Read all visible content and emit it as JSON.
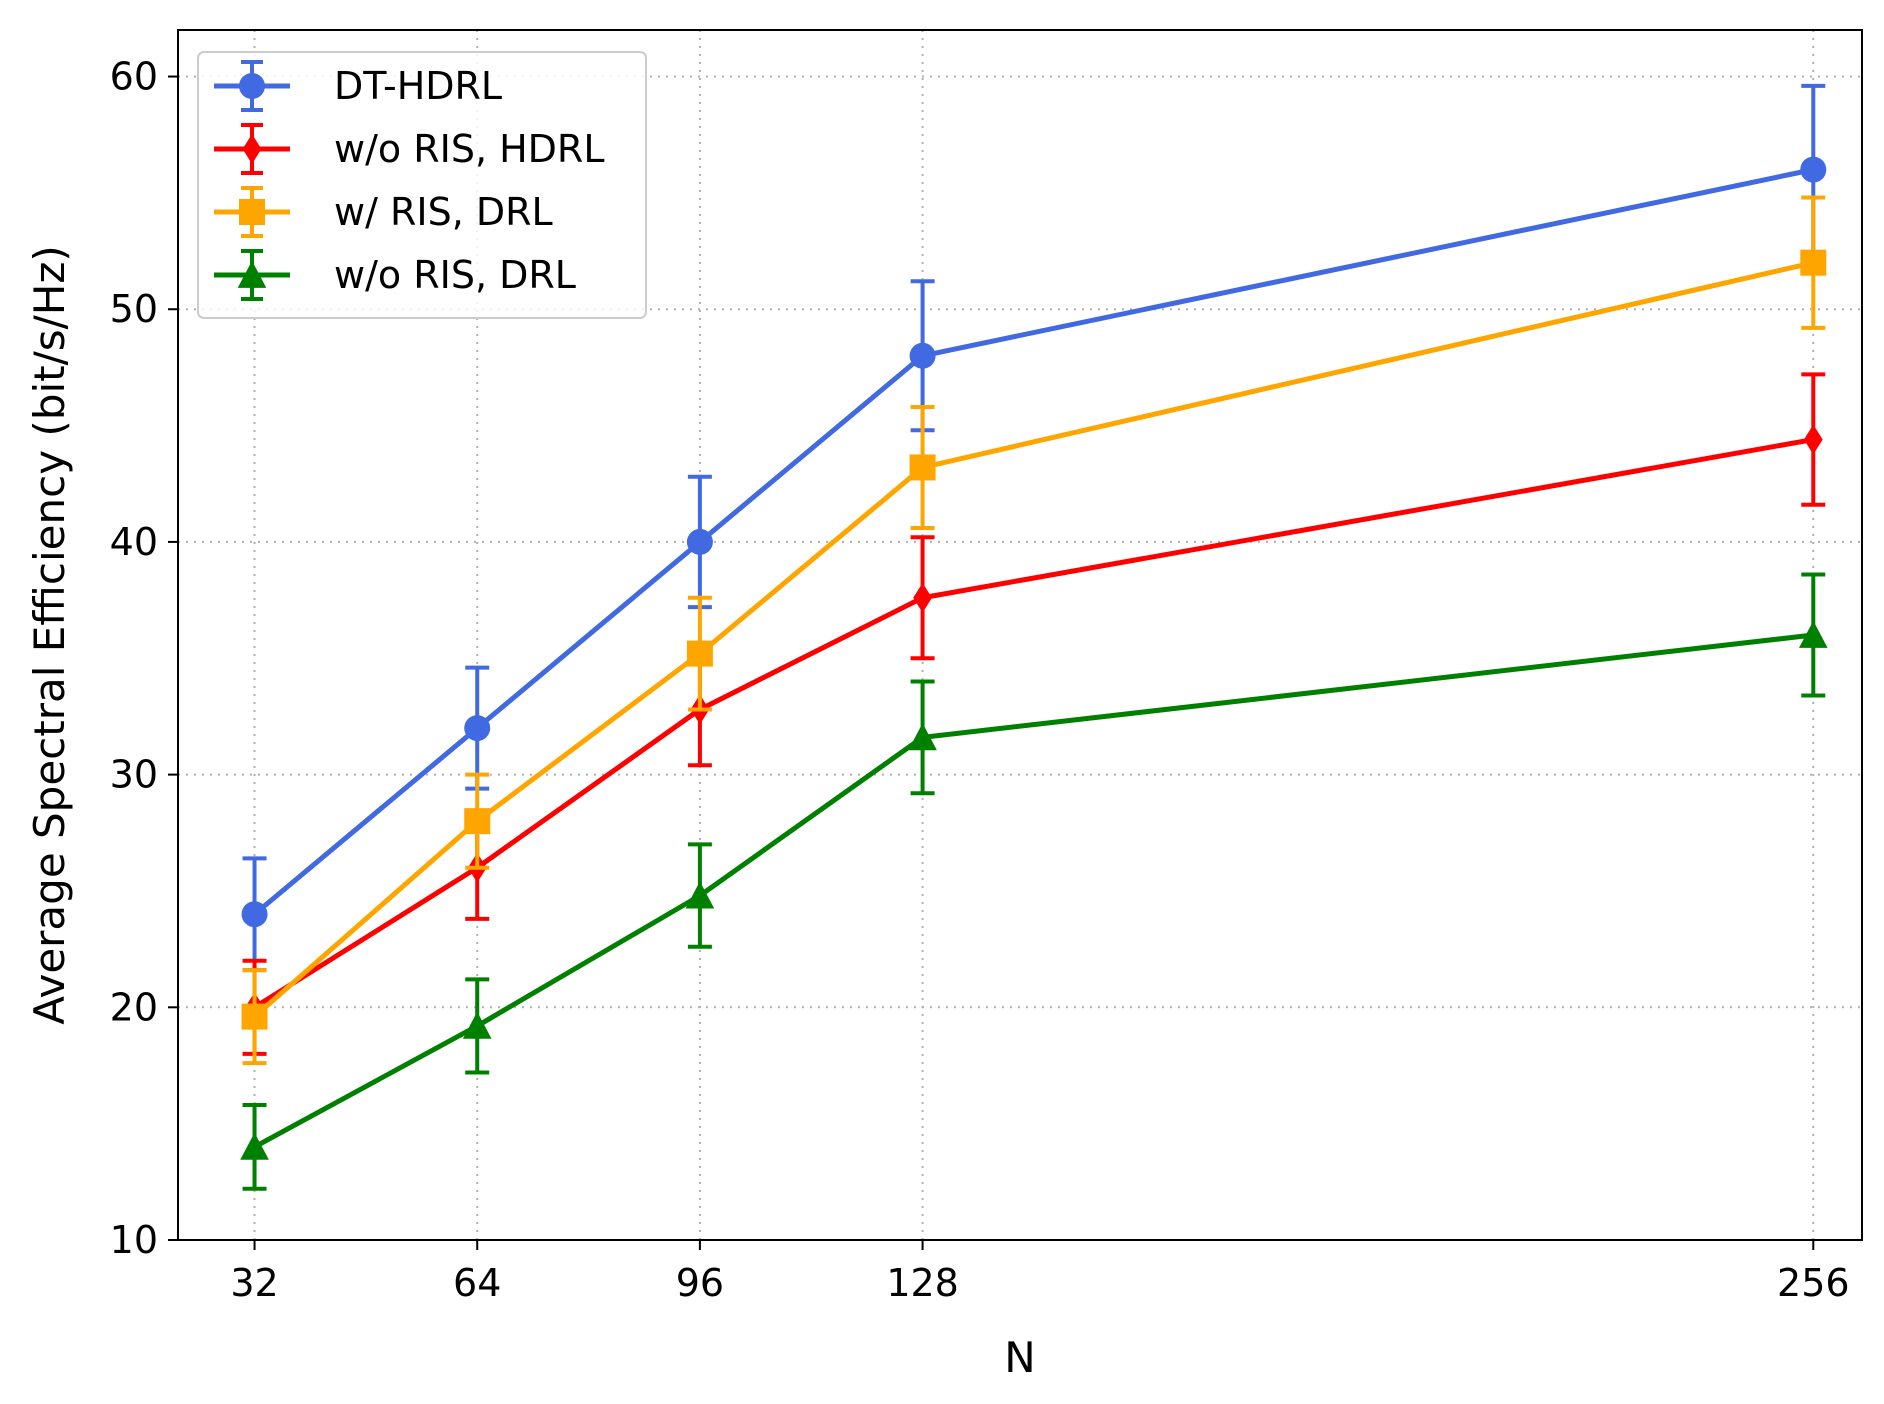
{
  "chart_data": {
    "type": "line",
    "title": "",
    "xlabel": "N",
    "ylabel": "Average Spectral Efficiency (bit/s/Hz)",
    "x": [
      32,
      64,
      96,
      128,
      256
    ],
    "xticks": [
      "32",
      "64",
      "96",
      "128",
      "256"
    ],
    "yticks": [
      "10",
      "20",
      "30",
      "40",
      "50",
      "60"
    ],
    "xlim": [
      21,
      263
    ],
    "ylim": [
      10,
      62
    ],
    "grid": true,
    "legend_position": "top-left",
    "series": [
      {
        "name": "DT-HDRL",
        "color": "#4169E1",
        "marker": "circle",
        "values": [
          24,
          32,
          40,
          48,
          56
        ],
        "errors": [
          2.4,
          2.6,
          2.8,
          3.2,
          3.6
        ]
      },
      {
        "name": "w/o RIS, HDRL",
        "color": "#FF0000",
        "marker": "diamond",
        "values": [
          20,
          26,
          32.8,
          37.6,
          44.4
        ],
        "errors": [
          2.0,
          2.2,
          2.4,
          2.6,
          2.8
        ]
      },
      {
        "name": "w/ RIS, DRL",
        "color": "#FFA500",
        "marker": "square",
        "values": [
          19.6,
          28,
          35.2,
          43.2,
          52
        ],
        "errors": [
          2.0,
          2.0,
          2.4,
          2.6,
          2.8
        ]
      },
      {
        "name": "w/o RIS, DRL",
        "color": "#008000",
        "marker": "triangle",
        "values": [
          14,
          19.2,
          24.8,
          31.6,
          36
        ],
        "errors": [
          1.8,
          2.0,
          2.2,
          2.4,
          2.6
        ]
      }
    ]
  }
}
